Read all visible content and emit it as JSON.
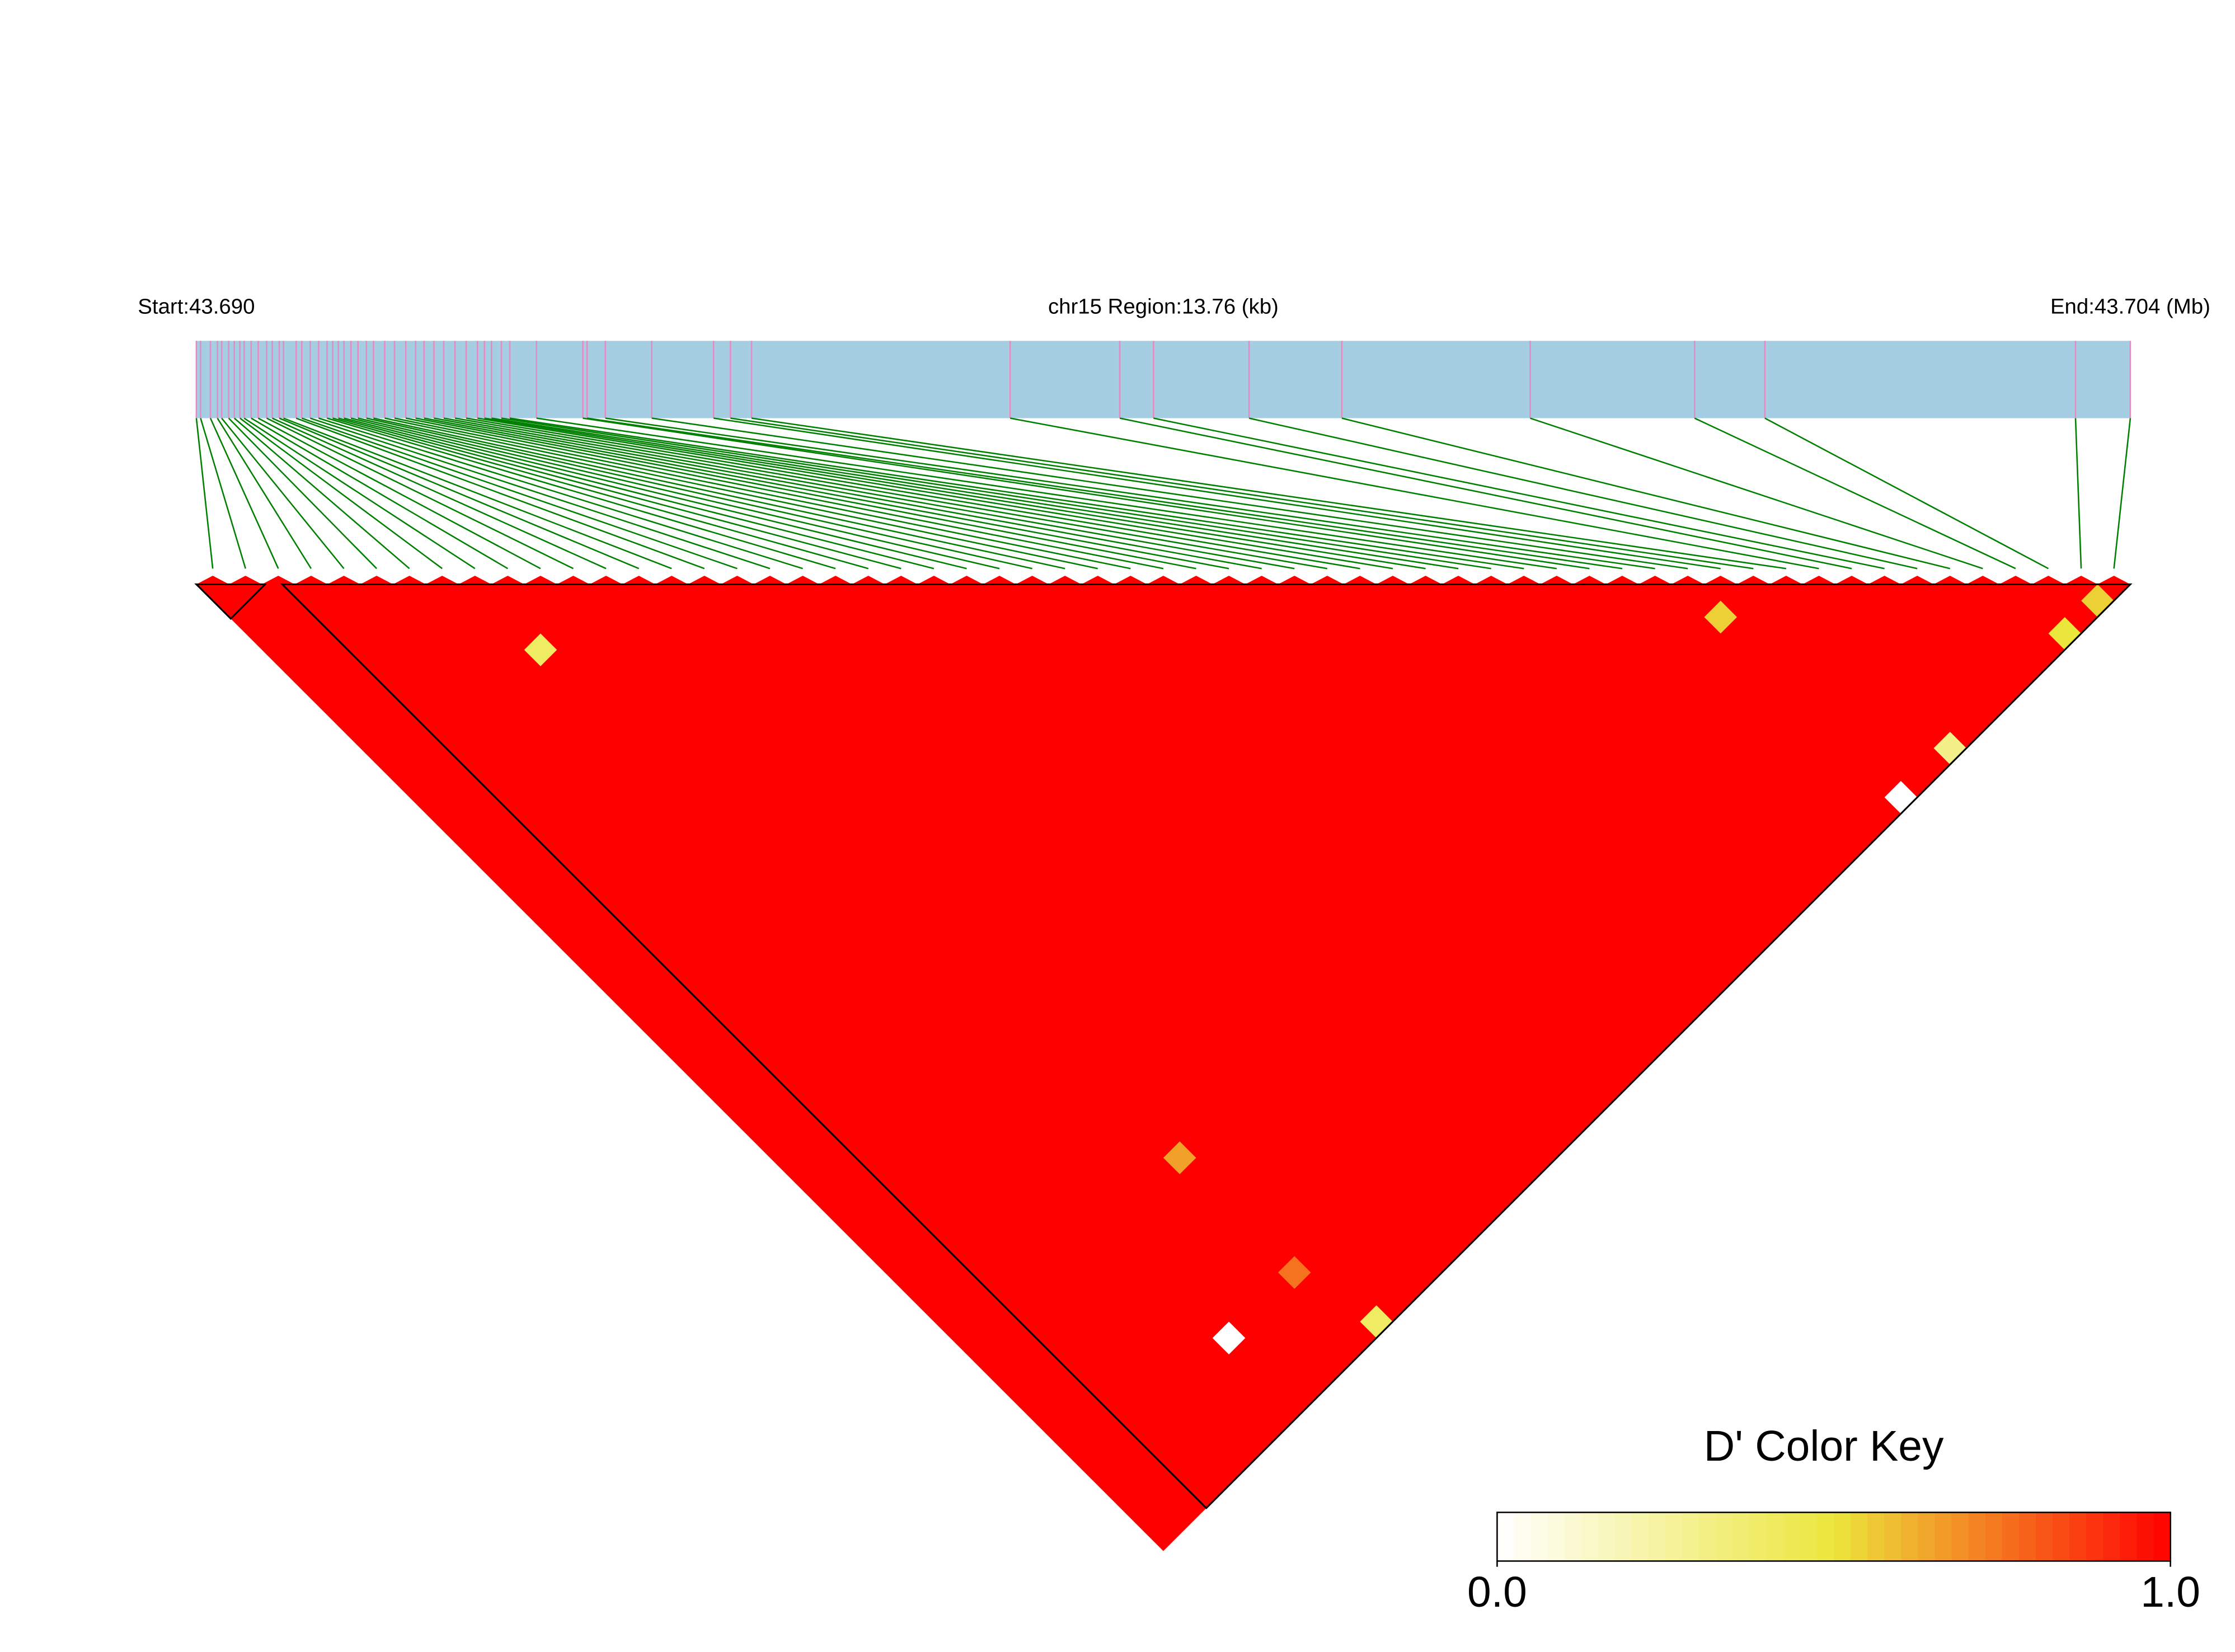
{
  "chart_data": {
    "type": "ld-heatmap",
    "start_label": "Start:43.690",
    "region_label": "chr15 Region:13.76 (kb)",
    "end_label": "End:43.704 (Mb)",
    "xlim": [
      0,
      13.76
    ],
    "snp_positions": [
      0,
      0.03,
      0.1,
      0.15,
      0.18,
      0.23,
      0.27,
      0.31,
      0.34,
      0.39,
      0.44,
      0.5,
      0.54,
      0.59,
      0.62,
      0.71,
      0.75,
      0.81,
      0.87,
      0.93,
      0.97,
      1.01,
      1.05,
      1.1,
      1.15,
      1.21,
      1.26,
      1.34,
      1.41,
      1.49,
      1.56,
      1.62,
      1.69,
      1.76,
      1.84,
      1.92,
      2.0,
      2.05,
      2.1,
      2.17,
      2.23,
      2.42,
      2.75,
      2.78,
      2.91,
      3.24,
      3.68,
      3.8,
      3.95,
      5.79,
      6.57,
      6.81,
      7.49,
      8.15,
      9.49,
      10.66,
      11.16,
      13.37,
      13.76
    ],
    "cells": [
      {
        "i": 8,
        "j": 12,
        "value": 0.4
      },
      {
        "i": 12,
        "j": 47,
        "value": 0.65
      },
      {
        "i": 8,
        "j": 54,
        "value": 0
      },
      {
        "i": 13,
        "j": 58,
        "value": 0.4
      },
      {
        "i": 12,
        "j": 54,
        "value": 0.75
      },
      {
        "i": 45,
        "j": 47,
        "value": 0.55
      },
      {
        "i": 45,
        "j": 58,
        "value": 0
      },
      {
        "i": 48,
        "j": 58,
        "value": 0.3
      },
      {
        "i": 55,
        "j": 58,
        "value": 0.5
      },
      {
        "i": 57,
        "j": 58,
        "value": 0.55
      }
    ],
    "colors": [
      "#ffffff",
      "#ebe63c",
      "#ff0000"
    ],
    "color_key": {
      "title": "D' Color Key",
      "lim": [
        0,
        1
      ],
      "ticks": [
        {
          "value": 0,
          "label": "0.0"
        },
        {
          "value": 1,
          "label": "1.0"
        }
      ]
    }
  }
}
